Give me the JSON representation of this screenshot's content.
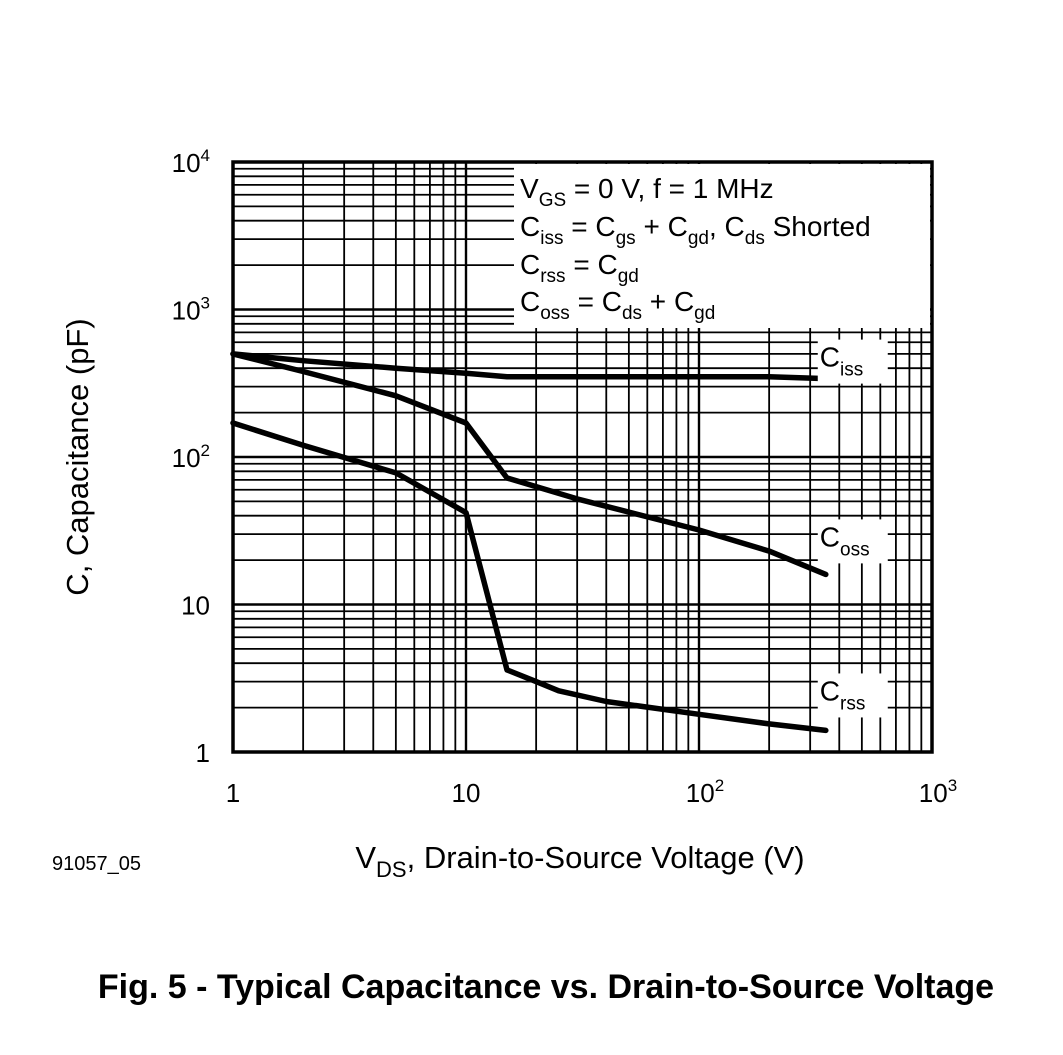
{
  "chart_data": {
    "type": "line",
    "title": "",
    "xlabel": {
      "main": "V",
      "sub": "DS",
      "rest": ", Drain-to-Source Voltage (V)"
    },
    "ylabel": "C, Capacitance (pF)",
    "x_scale": "log",
    "y_scale": "log",
    "xlim": [
      1,
      1000
    ],
    "ylim": [
      1,
      10000
    ],
    "grid": true,
    "x_ticks": [
      {
        "value": 1,
        "base": "1",
        "exp": ""
      },
      {
        "value": 10,
        "base": "10",
        "exp": ""
      },
      {
        "value": 100,
        "base": "10",
        "exp": "2"
      },
      {
        "value": 1000,
        "base": "10",
        "exp": "3"
      }
    ],
    "y_ticks": [
      {
        "value": 1,
        "base": "1",
        "exp": ""
      },
      {
        "value": 10,
        "base": "10",
        "exp": ""
      },
      {
        "value": 100,
        "base": "10",
        "exp": "2"
      },
      {
        "value": 1000,
        "base": "10",
        "exp": "3"
      },
      {
        "value": 10000,
        "base": "10",
        "exp": "4"
      }
    ],
    "series": [
      {
        "name": "Ciss",
        "label_main": "C",
        "label_sub": "iss",
        "x": [
          1,
          2,
          5,
          10,
          15,
          30,
          100,
          200,
          350
        ],
        "y": [
          500,
          450,
          400,
          370,
          350,
          350,
          350,
          350,
          340
        ]
      },
      {
        "name": "Coss",
        "label_main": "C",
        "label_sub": "oss",
        "x": [
          1,
          2,
          5,
          10,
          15,
          30,
          100,
          200,
          350
        ],
        "y": [
          500,
          380,
          260,
          170,
          72,
          52,
          32,
          23,
          16
        ]
      },
      {
        "name": "Crss",
        "label_main": "C",
        "label_sub": "rss",
        "x": [
          1,
          2,
          5,
          10,
          15,
          20,
          25,
          40,
          100,
          200,
          350
        ],
        "y": [
          170,
          120,
          78,
          42,
          3.6,
          3.0,
          2.6,
          2.2,
          1.8,
          1.55,
          1.4
        ]
      }
    ],
    "annotations": [
      [
        {
          "t": "V",
          "s": false
        },
        {
          "t": "GS",
          "s": true
        },
        {
          "t": " = 0 V, f = 1 MHz",
          "s": false
        }
      ],
      [
        {
          "t": "C",
          "s": false
        },
        {
          "t": "iss",
          "s": true
        },
        {
          "t": " = C",
          "s": false
        },
        {
          "t": "gs",
          "s": true
        },
        {
          "t": " + C",
          "s": false
        },
        {
          "t": "gd",
          "s": true
        },
        {
          "t": ", C",
          "s": false
        },
        {
          "t": "ds",
          "s": true
        },
        {
          "t": " Shorted",
          "s": false
        }
      ],
      [
        {
          "t": "C",
          "s": false
        },
        {
          "t": "rss",
          "s": true
        },
        {
          "t": " = C",
          "s": false
        },
        {
          "t": "gd",
          "s": true
        }
      ],
      [
        {
          "t": "C",
          "s": false
        },
        {
          "t": "oss",
          "s": true
        },
        {
          "t": " = C",
          "s": false
        },
        {
          "t": "ds",
          "s": true
        },
        {
          "t": " + C",
          "s": false
        },
        {
          "t": "gd",
          "s": true
        }
      ]
    ]
  },
  "figure_code": "91057_05",
  "caption": "Fig. 5 - Typical Capacitance vs. Drain-to-Source Voltage"
}
